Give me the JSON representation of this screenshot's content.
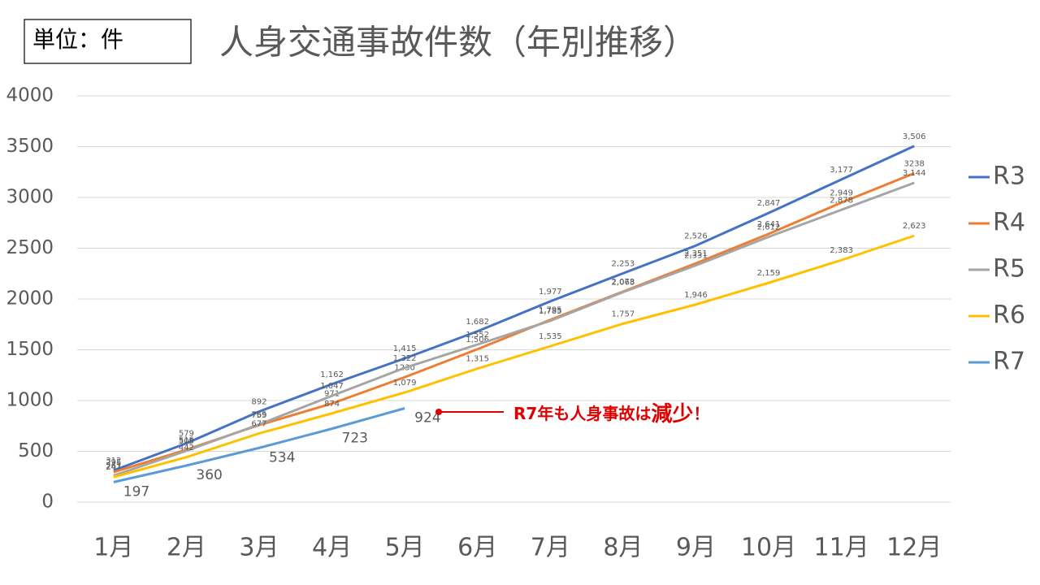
{
  "chart_data": {
    "type": "line",
    "unit": "単位：件",
    "title": "人身交通事故件数（年別推移）",
    "categories": [
      "1月",
      "2月",
      "3月",
      "4月",
      "5月",
      "6月",
      "7月",
      "8月",
      "9月",
      "10月",
      "11月",
      "12月"
    ],
    "series": [
      {
        "name": "R3",
        "color": "#4472c4",
        "values": [
          312,
          579,
          892,
          1162,
          1415,
          1682,
          1977,
          2253,
          2526,
          2847,
          3177,
          3506
        ],
        "value_labels": [
          "312",
          "579",
          "892",
          "1,162",
          "1,415",
          "1,682",
          "1,977",
          "2,253",
          "2,526",
          "2,847",
          "3,177",
          "3,506"
        ]
      },
      {
        "name": "R4",
        "color": "#ed7d31",
        "values": [
          295,
          516,
          759,
          971,
          1230,
          1506,
          1795,
          2073,
          2351,
          2641,
          2949,
          3238
        ],
        "value_labels": [
          "295",
          "516",
          "759",
          "971",
          "1230",
          "1,506",
          "1,795",
          "2,073",
          "2,351",
          "2,641",
          "2,949",
          "3238"
        ]
      },
      {
        "name": "R5",
        "color": "#a5a5a5",
        "values": [
          261,
          505,
          765,
          1047,
          1322,
          1552,
          1785,
          2068,
          2331,
          2612,
          2878,
          3144
        ],
        "value_labels": [
          "261",
          "505",
          "765",
          "1,047",
          "1,322",
          "1,552",
          "1,785",
          "2,068",
          "2,331",
          "2,612",
          "2,878",
          "3,144"
        ]
      },
      {
        "name": "R6",
        "color": "#ffc000",
        "values": [
          247,
          442,
          677,
          874,
          1079,
          1315,
          1535,
          1757,
          1946,
          2159,
          2383,
          2623
        ],
        "value_labels": [
          "247",
          "442",
          "677",
          "874",
          "1,079",
          "1,315",
          "1,535",
          "1,757",
          "1,946",
          "2,159",
          "2,383",
          "2,623"
        ]
      },
      {
        "name": "R7",
        "color": "#5b9bd5",
        "values": [
          197,
          360,
          534,
          723,
          924,
          null,
          null,
          null,
          null,
          null,
          null,
          null
        ]
      }
    ],
    "ylim": [
      0,
      4000
    ],
    "yticks": [
      0,
      500,
      1000,
      1500,
      2000,
      2500,
      3000,
      3500,
      4000
    ],
    "grid": true,
    "legend": "right",
    "annotation": [
      "R7年も人身事故は",
      "減少",
      "！"
    ],
    "annotation_color": "#e00000"
  }
}
